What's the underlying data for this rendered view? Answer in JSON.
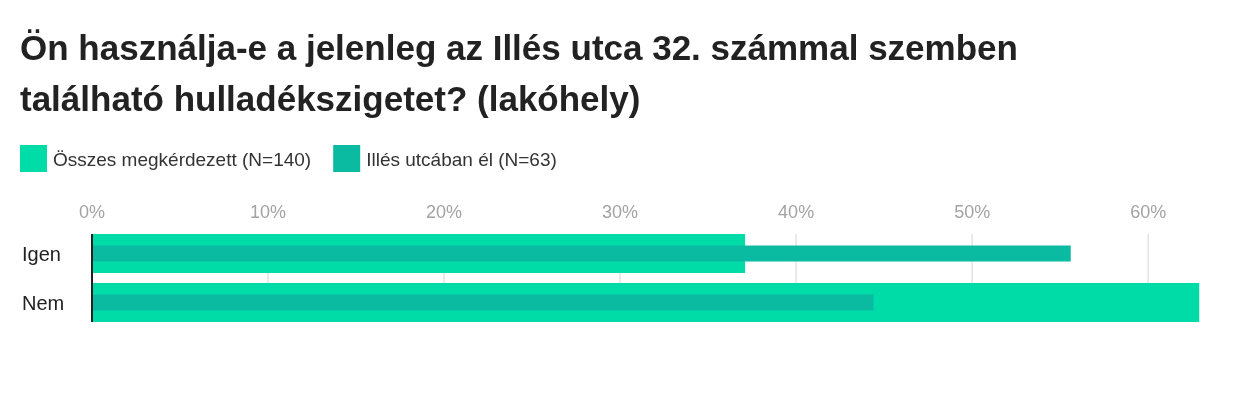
{
  "chart_data": {
    "type": "bar",
    "orientation": "horizontal",
    "title": "Ön használja-e a jelenleg az Illés utca 32. számmal szemben található hulladékszigetet? (lakóhely)",
    "categories": [
      "Igen",
      "Nem"
    ],
    "series": [
      {
        "name": "Összes megkérdezett (N=140)",
        "color": "#00dca8",
        "values": [
          37.1,
          62.9
        ]
      },
      {
        "name": "Illés utcában él (N=63)",
        "color": "#0abba1",
        "values": [
          55.6,
          44.4
        ]
      }
    ],
    "xlim": [
      0,
      63
    ],
    "xticks": [
      {
        "value": 0,
        "label": "0%"
      },
      {
        "value": 10,
        "label": "10%"
      },
      {
        "value": 20,
        "label": "20%"
      },
      {
        "value": 30,
        "label": "30%"
      },
      {
        "value": 40,
        "label": "40%"
      },
      {
        "value": 50,
        "label": "50%"
      },
      {
        "value": 60,
        "label": "60%"
      }
    ],
    "grid": "x",
    "legend": "top left"
  }
}
